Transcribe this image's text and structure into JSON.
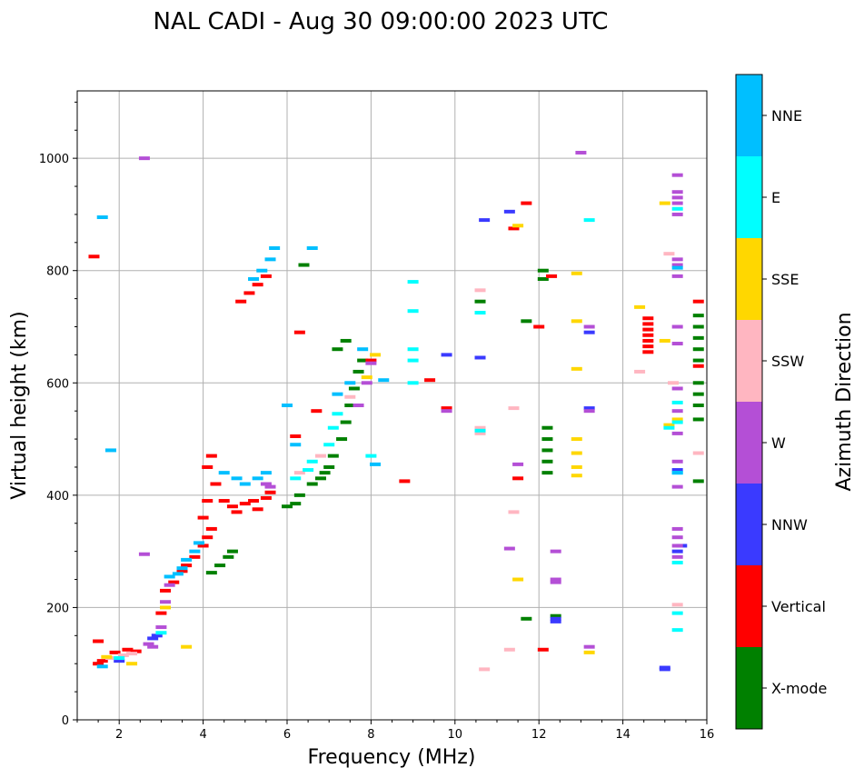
{
  "chart_data": {
    "type": "scatter",
    "title": "NAL CADI - Aug 30 09:00:00 2023 UTC",
    "xlabel": "Frequency (MHz)",
    "ylabel": "Virtual height (km)",
    "xlim": [
      1,
      16
    ],
    "ylim": [
      0,
      1120
    ],
    "x_ticks": [
      2,
      4,
      6,
      8,
      10,
      12,
      14,
      16
    ],
    "y_ticks": [
      0,
      200,
      400,
      600,
      800,
      1000
    ],
    "grid": true,
    "colorbar": {
      "title": "Azimuth Direction",
      "categories": [
        {
          "name": "X-mode",
          "color": "#008000"
        },
        {
          "name": "Vertical",
          "color": "#ff0000"
        },
        {
          "name": "NNW",
          "color": "#3a3aff"
        },
        {
          "name": "W",
          "color": "#b44fd6"
        },
        {
          "name": "SSW",
          "color": "#ffb6c1"
        },
        {
          "name": "SSE",
          "color": "#ffd700"
        },
        {
          "name": "E",
          "color": "#00ffff"
        },
        {
          "name": "NNE",
          "color": "#00bfff"
        }
      ]
    },
    "series": [
      {
        "name": "X-mode",
        "points": [
          [
            4.6,
            290
          ],
          [
            4.7,
            300
          ],
          [
            4.4,
            275
          ],
          [
            4.2,
            262
          ],
          [
            6.2,
            385
          ],
          [
            6.3,
            400
          ],
          [
            6.6,
            420
          ],
          [
            6.8,
            430
          ],
          [
            7.0,
            450
          ],
          [
            7.1,
            470
          ],
          [
            7.3,
            500
          ],
          [
            7.4,
            530
          ],
          [
            7.5,
            560
          ],
          [
            7.6,
            590
          ],
          [
            7.7,
            620
          ],
          [
            7.8,
            640
          ],
          [
            7.2,
            660
          ],
          [
            7.4,
            675
          ],
          [
            10.6,
            745
          ],
          [
            11.7,
            710
          ],
          [
            11.7,
            180
          ],
          [
            12.1,
            800
          ],
          [
            12.1,
            785
          ],
          [
            12.2,
            520
          ],
          [
            12.2,
            500
          ],
          [
            12.2,
            480
          ],
          [
            12.2,
            460
          ],
          [
            12.2,
            440
          ],
          [
            12.4,
            185
          ],
          [
            15.8,
            720
          ],
          [
            15.8,
            700
          ],
          [
            15.8,
            680
          ],
          [
            15.8,
            660
          ],
          [
            15.8,
            640
          ],
          [
            15.8,
            600
          ],
          [
            15.8,
            580
          ],
          [
            15.8,
            560
          ],
          [
            15.8,
            535
          ],
          [
            15.8,
            425
          ],
          [
            6.4,
            810
          ],
          [
            6.0,
            380
          ],
          [
            6.9,
            440
          ]
        ]
      },
      {
        "name": "Vertical",
        "points": [
          [
            1.5,
            140
          ],
          [
            1.5,
            100
          ],
          [
            1.6,
            105
          ],
          [
            1.9,
            120
          ],
          [
            2.2,
            125
          ],
          [
            2.4,
            122
          ],
          [
            3.0,
            190
          ],
          [
            3.1,
            230
          ],
          [
            3.3,
            245
          ],
          [
            3.5,
            265
          ],
          [
            3.6,
            275
          ],
          [
            3.8,
            290
          ],
          [
            4.0,
            310
          ],
          [
            4.1,
            325
          ],
          [
            4.2,
            340
          ],
          [
            4.0,
            360
          ],
          [
            4.1,
            390
          ],
          [
            4.3,
            420
          ],
          [
            4.1,
            450
          ],
          [
            4.2,
            470
          ],
          [
            4.5,
            390
          ],
          [
            4.7,
            380
          ],
          [
            4.8,
            370
          ],
          [
            5.0,
            385
          ],
          [
            5.2,
            390
          ],
          [
            5.3,
            375
          ],
          [
            5.5,
            395
          ],
          [
            5.6,
            405
          ],
          [
            4.9,
            745
          ],
          [
            5.1,
            760
          ],
          [
            5.3,
            775
          ],
          [
            5.5,
            790
          ],
          [
            6.3,
            690
          ],
          [
            6.2,
            505
          ],
          [
            6.7,
            550
          ],
          [
            8.0,
            640
          ],
          [
            8.8,
            425
          ],
          [
            9.4,
            605
          ],
          [
            9.8,
            555
          ],
          [
            11.5,
            430
          ],
          [
            11.7,
            920
          ],
          [
            11.4,
            875
          ],
          [
            12.0,
            700
          ],
          [
            12.1,
            125
          ],
          [
            12.3,
            790
          ],
          [
            14.6,
            715
          ],
          [
            14.6,
            705
          ],
          [
            14.6,
            695
          ],
          [
            14.6,
            685
          ],
          [
            14.6,
            675
          ],
          [
            14.6,
            665
          ],
          [
            14.6,
            655
          ],
          [
            15.8,
            745
          ],
          [
            15.8,
            630
          ],
          [
            1.4,
            825
          ]
        ]
      },
      {
        "name": "NNW",
        "points": [
          [
            2.0,
            105
          ],
          [
            2.8,
            145
          ],
          [
            2.9,
            150
          ],
          [
            9.8,
            650
          ],
          [
            10.6,
            645
          ],
          [
            10.7,
            890
          ],
          [
            11.3,
            905
          ],
          [
            12.4,
            180
          ],
          [
            12.4,
            175
          ],
          [
            13.2,
            690
          ],
          [
            13.2,
            555
          ],
          [
            15.0,
            93
          ],
          [
            15.0,
            90
          ],
          [
            15.3,
            300
          ],
          [
            15.3,
            445
          ],
          [
            15.4,
            310
          ]
        ]
      },
      {
        "name": "W",
        "points": [
          [
            2.7,
            135
          ],
          [
            2.8,
            130
          ],
          [
            3.0,
            165
          ],
          [
            3.1,
            210
          ],
          [
            3.2,
            240
          ],
          [
            5.5,
            420
          ],
          [
            5.6,
            415
          ],
          [
            7.7,
            560
          ],
          [
            7.9,
            600
          ],
          [
            8.0,
            635
          ],
          [
            9.8,
            550
          ],
          [
            11.3,
            305
          ],
          [
            11.5,
            455
          ],
          [
            12.4,
            300
          ],
          [
            12.4,
            250
          ],
          [
            12.4,
            245
          ],
          [
            13.2,
            130
          ],
          [
            13.2,
            700
          ],
          [
            13.2,
            550
          ],
          [
            13.0,
            1010
          ],
          [
            15.3,
            970
          ],
          [
            15.3,
            940
          ],
          [
            15.3,
            930
          ],
          [
            15.3,
            920
          ],
          [
            15.3,
            900
          ],
          [
            15.3,
            820
          ],
          [
            15.3,
            810
          ],
          [
            15.3,
            790
          ],
          [
            15.3,
            700
          ],
          [
            15.3,
            670
          ],
          [
            15.3,
            590
          ],
          [
            15.3,
            550
          ],
          [
            15.3,
            510
          ],
          [
            15.3,
            460
          ],
          [
            15.3,
            415
          ],
          [
            15.3,
            340
          ],
          [
            15.3,
            325
          ],
          [
            15.3,
            310
          ],
          [
            15.3,
            290
          ],
          [
            2.6,
            1000
          ],
          [
            2.6,
            295
          ]
        ]
      },
      {
        "name": "SSW",
        "points": [
          [
            1.8,
            110
          ],
          [
            2.1,
            115
          ],
          [
            2.3,
            118
          ],
          [
            6.3,
            440
          ],
          [
            6.8,
            470
          ],
          [
            7.5,
            575
          ],
          [
            10.7,
            90
          ],
          [
            10.6,
            520
          ],
          [
            10.6,
            510
          ],
          [
            10.6,
            765
          ],
          [
            11.4,
            370
          ],
          [
            11.4,
            555
          ],
          [
            11.3,
            125
          ],
          [
            14.4,
            620
          ],
          [
            15.1,
            830
          ],
          [
            15.2,
            600
          ],
          [
            15.8,
            475
          ],
          [
            15.3,
            205
          ]
        ]
      },
      {
        "name": "SSE",
        "points": [
          [
            1.7,
            112
          ],
          [
            2.3,
            100
          ],
          [
            3.1,
            200
          ],
          [
            3.6,
            130
          ],
          [
            7.9,
            610
          ],
          [
            8.1,
            650
          ],
          [
            11.5,
            880
          ],
          [
            11.5,
            250
          ],
          [
            12.9,
            710
          ],
          [
            12.9,
            795
          ],
          [
            12.9,
            625
          ],
          [
            12.9,
            500
          ],
          [
            12.9,
            475
          ],
          [
            12.9,
            450
          ],
          [
            12.9,
            435
          ],
          [
            13.2,
            120
          ],
          [
            14.4,
            735
          ],
          [
            15.0,
            920
          ],
          [
            15.0,
            675
          ],
          [
            15.3,
            535
          ],
          [
            15.1,
            525
          ]
        ]
      },
      {
        "name": "E",
        "points": [
          [
            2.0,
            110
          ],
          [
            3.0,
            155
          ],
          [
            6.2,
            430
          ],
          [
            6.5,
            445
          ],
          [
            6.6,
            460
          ],
          [
            7.0,
            490
          ],
          [
            7.1,
            520
          ],
          [
            7.2,
            545
          ],
          [
            8.0,
            470
          ],
          [
            9.0,
            780
          ],
          [
            9.0,
            728
          ],
          [
            9.0,
            660
          ],
          [
            9.0,
            640
          ],
          [
            9.0,
            600
          ],
          [
            10.6,
            725
          ],
          [
            10.6,
            515
          ],
          [
            13.2,
            890
          ],
          [
            15.3,
            910
          ],
          [
            15.3,
            565
          ],
          [
            15.3,
            530
          ],
          [
            15.3,
            440
          ],
          [
            15.3,
            280
          ],
          [
            15.3,
            190
          ],
          [
            15.3,
            160
          ],
          [
            15.1,
            520
          ]
        ]
      },
      {
        "name": "NNE",
        "points": [
          [
            1.6,
            95
          ],
          [
            1.8,
            480
          ],
          [
            1.6,
            895
          ],
          [
            3.2,
            255
          ],
          [
            3.4,
            260
          ],
          [
            3.5,
            270
          ],
          [
            3.6,
            285
          ],
          [
            3.8,
            300
          ],
          [
            3.9,
            315
          ],
          [
            4.5,
            440
          ],
          [
            4.8,
            430
          ],
          [
            5.0,
            420
          ],
          [
            5.3,
            430
          ],
          [
            5.5,
            440
          ],
          [
            5.6,
            820
          ],
          [
            5.7,
            840
          ],
          [
            5.4,
            800
          ],
          [
            5.2,
            785
          ],
          [
            6.6,
            840
          ],
          [
            6.0,
            560
          ],
          [
            7.2,
            580
          ],
          [
            7.5,
            600
          ],
          [
            7.8,
            660
          ],
          [
            8.3,
            605
          ],
          [
            8.1,
            455
          ],
          [
            15.3,
            805
          ],
          [
            15.3,
            440
          ],
          [
            6.2,
            490
          ]
        ]
      }
    ]
  }
}
